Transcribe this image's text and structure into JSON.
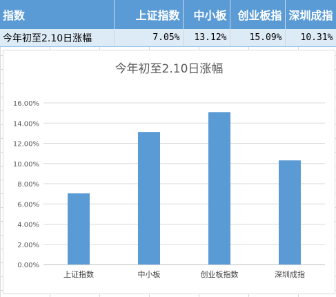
{
  "sheet": {
    "headers": [
      "指数",
      "上证指数",
      "中小板",
      "创业板指",
      "深圳成指"
    ],
    "row": {
      "label": "今年初至2.10日涨幅",
      "values": [
        "7.05%",
        "13.12%",
        "15.09%",
        "10.31%"
      ]
    }
  },
  "colors": {
    "header_bg": "#5b9bd5",
    "bar": "#5b9bd5",
    "row_bg": "#ddebf7"
  },
  "chart_data": {
    "type": "bar",
    "title": "今年初至2.10日涨幅",
    "categories": [
      "上证指数",
      "中小板",
      "创业板指数",
      "深圳成指"
    ],
    "values": [
      0.0705,
      0.1312,
      0.1509,
      0.1031
    ],
    "ylim": [
      0,
      0.16
    ],
    "yticks": [
      0,
      0.02,
      0.04,
      0.06,
      0.08,
      0.1,
      0.12,
      0.14,
      0.16
    ],
    "ytick_labels": [
      "0.00%",
      "2.00%",
      "4.00%",
      "6.00%",
      "8.00%",
      "10.00%",
      "12.00%",
      "14.00%",
      "16.00%"
    ],
    "grid": true,
    "legend": "none"
  }
}
